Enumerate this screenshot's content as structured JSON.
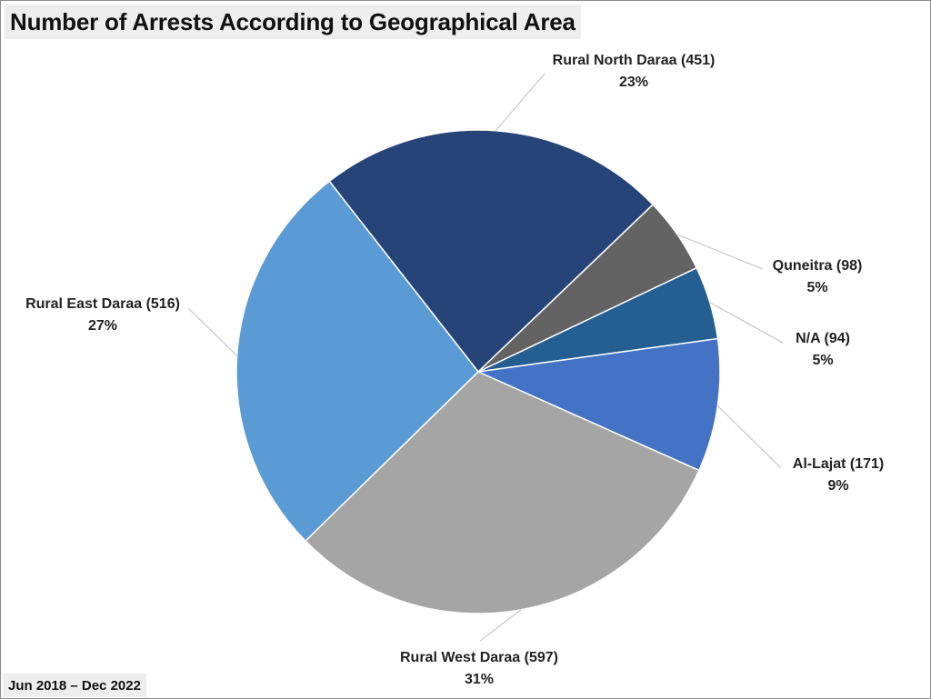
{
  "title": "Number of Arrests According to Geographical Area",
  "subtitle": "Jun 2018 – Dec 2022",
  "chart_data": {
    "type": "pie",
    "title": "Number of Arrests According to Geographical Area",
    "subtitle": "Jun 2018 – Dec 2022",
    "slices": [
      {
        "label": "Rural North Daraa (451)",
        "value": 451,
        "percent": "23%",
        "color": "#264478"
      },
      {
        "label": "Quneitra (98)",
        "value": 98,
        "percent": "5%",
        "color": "#636363"
      },
      {
        "label": "N/A (94)",
        "value": 94,
        "percent": "5%",
        "color": "#255e91"
      },
      {
        "label": "Al-Lajat (171)",
        "value": 171,
        "percent": "9%",
        "color": "#4472c4"
      },
      {
        "label": "Rural West Daraa (597)",
        "value": 597,
        "percent": "31%",
        "color": "#a5a5a5"
      },
      {
        "label": "Rural East Daraa (516)",
        "value": 516,
        "percent": "27%",
        "color": "#5b9bd5"
      }
    ],
    "legend": "none",
    "data_labels": "outside with leader lines"
  }
}
